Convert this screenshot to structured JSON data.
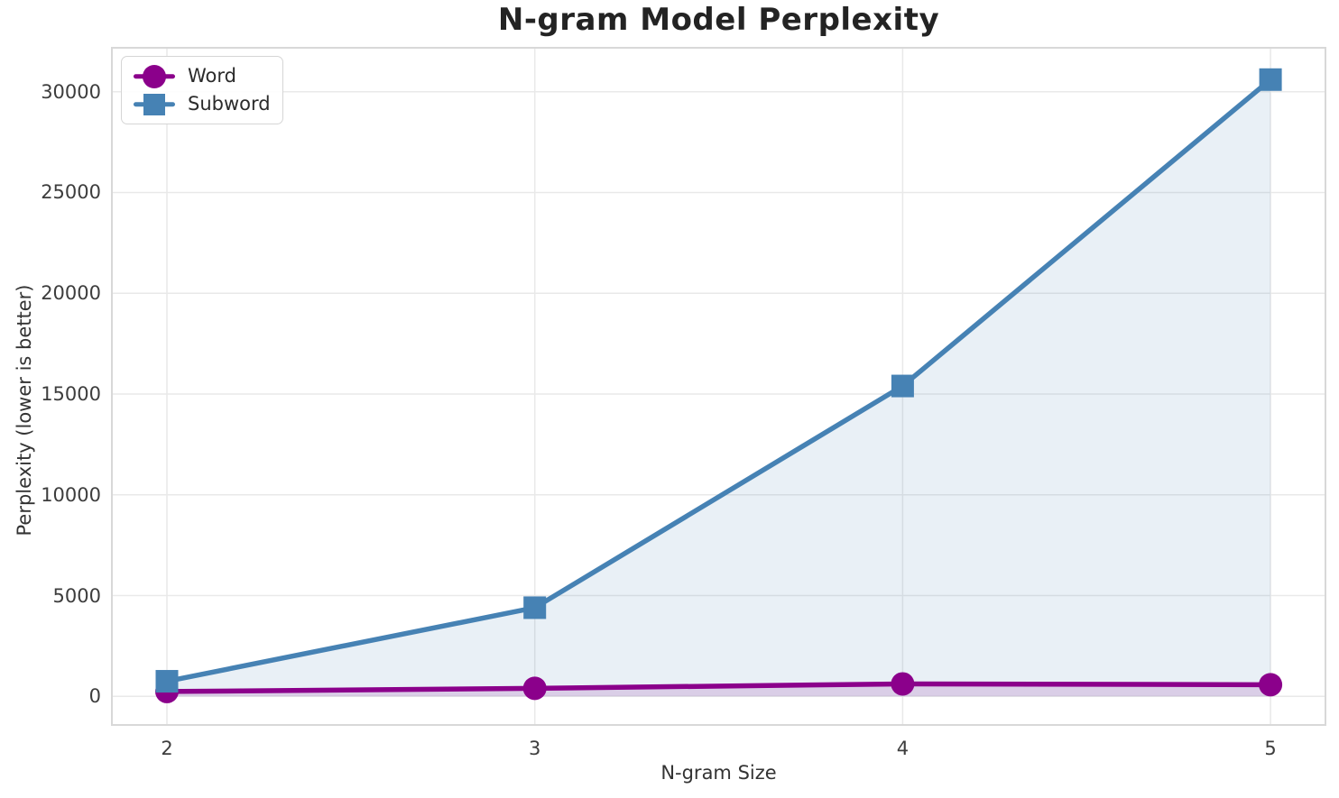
{
  "chart_data": {
    "type": "line",
    "title": "N-gram Model Perplexity",
    "xlabel": "N-gram Size",
    "ylabel": "Perplexity (lower is better)",
    "x": [
      2,
      3,
      4,
      5
    ],
    "x_tick_labels": [
      "2",
      "3",
      "4",
      "5"
    ],
    "y_ticks": [
      0,
      5000,
      10000,
      15000,
      20000,
      25000,
      30000
    ],
    "y_tick_labels": [
      "0",
      "5000",
      "10000",
      "15000",
      "20000",
      "25000",
      "30000"
    ],
    "ylim": [
      0,
      32000
    ],
    "grid": true,
    "legend_position": "upper left",
    "series": [
      {
        "name": "Word",
        "marker": "circle",
        "color": "#8B008B",
        "area_opacity": 0.15,
        "values": [
          240,
          400,
          620,
          580
        ]
      },
      {
        "name": "Subword",
        "marker": "square",
        "color": "#4682B4",
        "area_opacity": 0.12,
        "values": [
          750,
          4400,
          15400,
          30600
        ]
      }
    ],
    "colors": {
      "grid": "#E9E9E9",
      "spine": "#D8D8D8",
      "title_text": "#232323",
      "tick_text": "#3D3D3D"
    }
  }
}
